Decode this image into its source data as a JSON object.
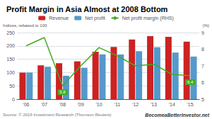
{
  "chart_data": {
    "type": "bar",
    "title": "Profit Margin in Asia Almost at 2008 Bottom",
    "ylabel": "Indices, rebased to 100",
    "y2label": "(%)",
    "categories": [
      "'06",
      "'07",
      "'08",
      "'09",
      "'10",
      "'11",
      "'12",
      "'13",
      "'14",
      "'15"
    ],
    "series": [
      {
        "name": "Revenue",
        "type": "bar",
        "color": "#cc2222",
        "values": [
          100,
          127,
          135,
          142,
          178,
          196,
          224,
          237,
          234,
          216
        ]
      },
      {
        "name": "Net profit",
        "type": "bar",
        "color": "#5599cc",
        "values": [
          100,
          122,
          88,
          118,
          168,
          168,
          180,
          195,
          175,
          160
        ]
      },
      {
        "name": "Net profit margin (RHS)",
        "type": "line",
        "color": "#44aa22",
        "axis": "y2",
        "values": [
          8.2,
          8.7,
          5.8,
          7.0,
          8.1,
          7.6,
          7.0,
          7.1,
          6.5,
          6.4
        ]
      }
    ],
    "ylim": [
      0,
      250
    ],
    "yticks": [
      0,
      50,
      100,
      150,
      200,
      250
    ],
    "y2lim": [
      5,
      9
    ],
    "y2ticks": [
      5,
      6,
      7,
      8,
      9
    ],
    "annotations": [
      {
        "text": "5.8",
        "x": "'08",
        "y": 5.8
      },
      {
        "text": "6.4",
        "x": "'15",
        "y": 6.4
      }
    ],
    "grid": true,
    "legend": "top",
    "footer": "BecomeaBetterInvestor.net",
    "source": "Source: © 2016 Investment Research (Thomson Reuters)"
  }
}
